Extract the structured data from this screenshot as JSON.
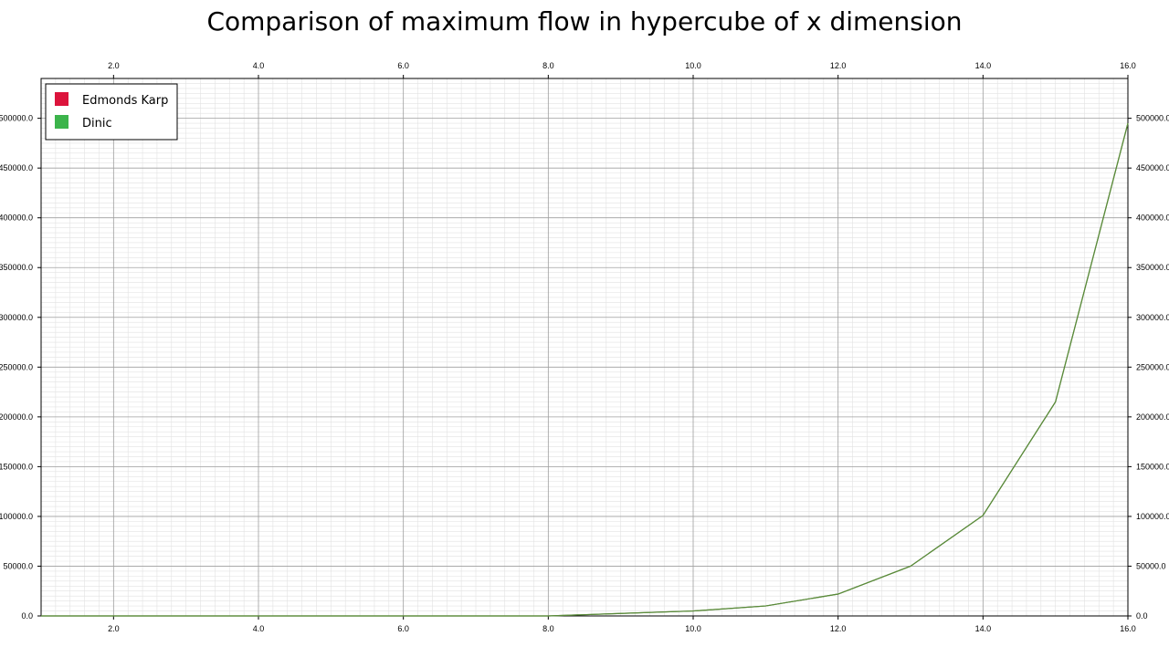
{
  "colors": {
    "edmonds_karp": "#dc143c",
    "dinic": "#3cb44b",
    "line": "#5a8a3a",
    "grid_major": "#a0a0a0",
    "grid_minor": "#e2e2e2"
  },
  "chart_data": {
    "type": "line",
    "title": "Comparison of maximum flow in hypercube of x dimension",
    "xlabel": "",
    "ylabel": "",
    "xlim": [
      1,
      16
    ],
    "ylim": [
      0,
      540000
    ],
    "grid": true,
    "legend_position": "top-left",
    "x_ticks": [
      "2.0",
      "4.0",
      "6.0",
      "8.0",
      "10.0",
      "12.0",
      "14.0",
      "16.0"
    ],
    "y_ticks_left": [
      "0.0",
      "50000.0",
      "100000.0",
      "150000.0",
      "200000.0",
      "250000.0",
      "300000.0",
      "350000.0",
      "400000.0",
      "450000.0",
      "500000.0"
    ],
    "y_ticks_right": [
      "0.0",
      "50000.0",
      "100000.0",
      "150000.0",
      "200000.0",
      "250000.0",
      "300000.0",
      "350000.0",
      "400000.0",
      "450000.0",
      "500000.0"
    ],
    "x": [
      1,
      2,
      3,
      4,
      5,
      6,
      7,
      8,
      9,
      10,
      11,
      12,
      13,
      14,
      15,
      16
    ],
    "series": [
      {
        "name": "Edmonds Karp",
        "values": [
          0,
          0,
          0,
          0,
          0,
          0,
          0,
          0,
          2500,
          5000,
          10000,
          22000,
          50000,
          101000,
          215000,
          495000
        ]
      },
      {
        "name": "Dinic",
        "values": [
          0,
          0,
          0,
          0,
          0,
          0,
          0,
          0,
          2500,
          5000,
          10000,
          22000,
          50000,
          101000,
          215000,
          495000
        ]
      }
    ]
  }
}
